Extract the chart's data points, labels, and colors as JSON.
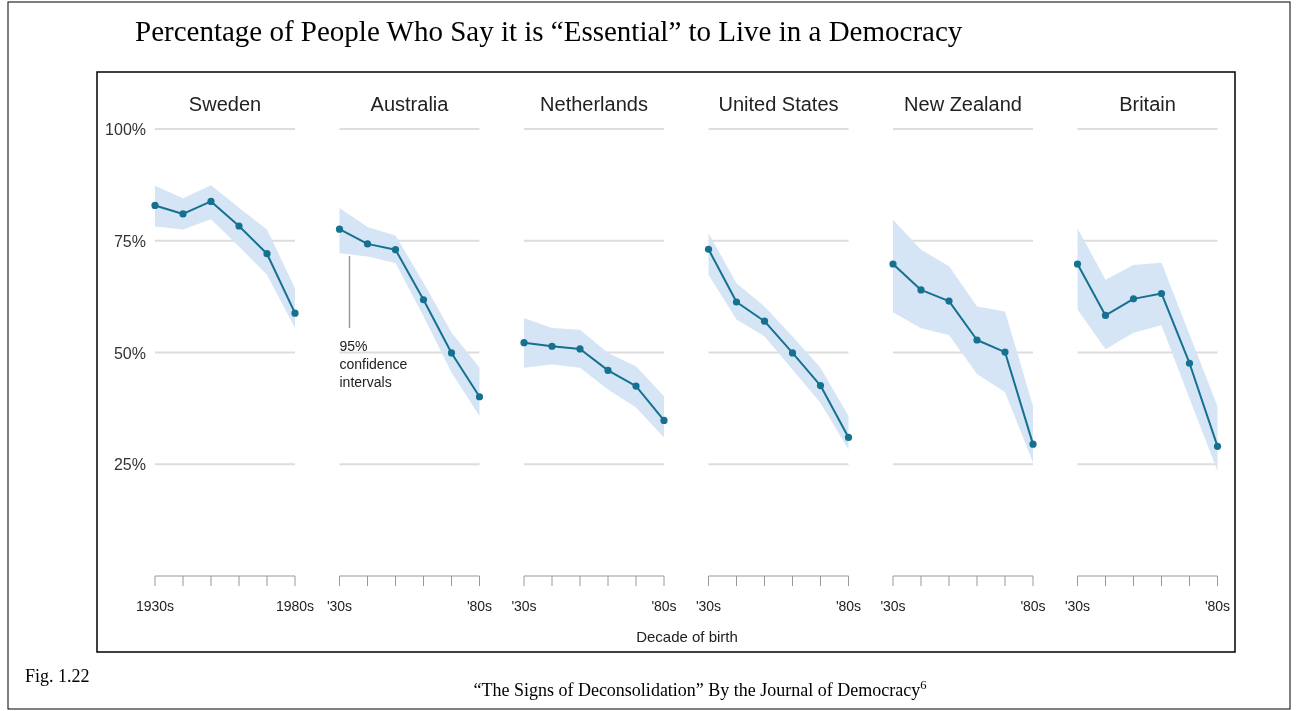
{
  "chart_data": [
    {
      "type": "line",
      "title": "Sweden",
      "annotations": [
        "Percentage of People Who Say it is “Essential” to Live in a Democracy",
        "Fig. 1.22",
        "“The Signs of Deconsolidation” By the Journal of Democracy$^{6}$",
        "Decade of birth"
      ],
      "categories": [
        "1930s",
        null,
        null,
        null,
        null,
        "1980s"
      ],
      "ylim": [
        0,
        100
      ],
      "yticks": [
        {
          "value": 25,
          "label": "25%"
        },
        {
          "value": 50,
          "label": "50%"
        },
        {
          "value": 75,
          "label": "75%"
        },
        {
          "value": 100,
          "label": "100%"
        }
      ],
      "grid": "y",
      "marker": "circle",
      "series": [
        {
          "color": "#15718f",
          "values": [
            82.9,
            81.0,
            83.8,
            78.3,
            72.1,
            58.8
          ],
          "lower": [
            78.2,
            77.5,
            79.8,
            73.7,
            67.4,
            55.5
          ],
          "upper": [
            87.3,
            84.5,
            87.4,
            82.4,
            77.5,
            64.4
          ]
        }
      ]
    },
    {
      "type": "line",
      "title": "Australia",
      "annotations": [
        "95% confidence intervals"
      ],
      "categories": [
        "'30s",
        null,
        null,
        null,
        null,
        "'80s"
      ],
      "ylim": [
        0,
        100
      ],
      "yticks": [
        25,
        50,
        75,
        100
      ],
      "grid": "y",
      "tick_labels": "x",
      "marker": "circle",
      "series": [
        {
          "color": "#15718f",
          "values": [
            77.6,
            74.3,
            73.0,
            61.8,
            49.9,
            40.1
          ],
          "lower": [
            72.2,
            71.5,
            70.0,
            58.1,
            45.5,
            35.8
          ],
          "upper": [
            82.3,
            78.1,
            76.2,
            65.6,
            54.5,
            46.6
          ]
        }
      ]
    },
    {
      "type": "line",
      "title": "Netherlands",
      "categories": [
        "'30s",
        null,
        null,
        null,
        null,
        "'80s"
      ],
      "ylim": [
        0,
        100
      ],
      "yticks": [
        25,
        50,
        75,
        100
      ],
      "grid": "y",
      "tick_labels": "x",
      "marker": "circle",
      "series": [
        {
          "color": "#15718f",
          "values": [
            52.2,
            51.4,
            50.8,
            46.0,
            42.5,
            34.8
          ],
          "lower": [
            46.6,
            47.3,
            46.6,
            41.7,
            37.7,
            31.0
          ],
          "upper": [
            57.7,
            55.5,
            55.1,
            49.9,
            46.9,
            40.2
          ]
        }
      ]
    },
    {
      "type": "line",
      "title": "United States",
      "categories": [
        "'30s",
        null,
        null,
        null,
        null,
        "'80s"
      ],
      "ylim": [
        0,
        100
      ],
      "yticks": [
        25,
        50,
        75,
        100
      ],
      "grid": "y",
      "tick_labels": "x",
      "marker": "circle",
      "series": [
        {
          "color": "#15718f",
          "values": [
            73.1,
            61.3,
            57.0,
            49.9,
            42.6,
            31.0
          ],
          "lower": [
            67.4,
            57.4,
            53.6,
            46.2,
            38.7,
            28.3
          ],
          "upper": [
            76.7,
            65.5,
            60.3,
            53.6,
            46.6,
            35.8
          ]
        }
      ]
    },
    {
      "type": "line",
      "title": "New Zealand",
      "categories": [
        "'30s",
        null,
        null,
        null,
        null,
        "'80s"
      ],
      "ylim": [
        0,
        100
      ],
      "yticks": [
        25,
        50,
        75,
        100
      ],
      "grid": "y",
      "tick_labels": "x",
      "marker": "circle",
      "series": [
        {
          "color": "#15718f",
          "values": [
            69.8,
            64.0,
            61.5,
            52.8,
            50.1,
            29.5
          ],
          "lower": [
            59.0,
            55.4,
            53.9,
            45.2,
            41.1,
            25.4
          ],
          "upper": [
            79.7,
            73.0,
            69.3,
            60.3,
            59.2,
            38.0
          ]
        }
      ]
    },
    {
      "type": "line",
      "title": "Britain",
      "categories": [
        "'30s",
        null,
        null,
        null,
        null,
        "'80s"
      ],
      "ylim": [
        0,
        100
      ],
      "yticks": [
        25,
        50,
        75,
        100
      ],
      "grid": "y",
      "tick_labels": "x",
      "marker": "circle",
      "series": [
        {
          "color": "#15718f",
          "values": [
            69.8,
            58.3,
            62.0,
            63.2,
            47.6,
            29.0
          ],
          "lower": [
            59.6,
            50.7,
            54.4,
            56.1,
            39.7,
            23.5
          ],
          "upper": [
            77.8,
            66.3,
            69.6,
            70.1,
            54.0,
            38.0
          ]
        }
      ]
    }
  ]
}
